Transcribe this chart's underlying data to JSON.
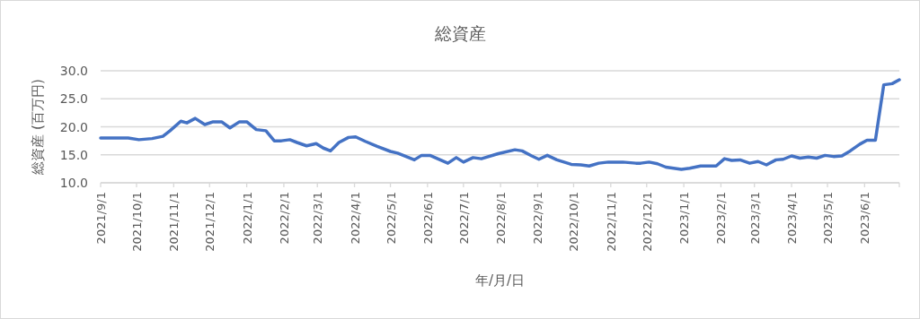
{
  "chart_data": {
    "type": "line",
    "title": "総資産",
    "xlabel": "年/月/日",
    "ylabel": "総資産 (百万円)",
    "x": [
      "2021-09-01",
      "2021-09-24",
      "2021-10-03",
      "2021-10-14",
      "2021-10-23",
      "2021-10-29",
      "2021-11-07",
      "2021-11-12",
      "2021-11-19",
      "2021-11-27",
      "2021-12-04",
      "2021-12-11",
      "2021-12-18",
      "2021-12-26",
      "2022-01-01",
      "2022-01-09",
      "2022-01-17",
      "2022-01-24",
      "2022-01-30",
      "2022-02-06",
      "2022-02-12",
      "2022-02-20",
      "2022-02-28",
      "2022-03-06",
      "2022-03-12",
      "2022-03-19",
      "2022-03-27",
      "2022-04-02",
      "2022-04-10",
      "2022-04-20",
      "2022-05-01",
      "2022-05-07",
      "2022-05-21",
      "2022-05-27",
      "2022-06-03",
      "2022-06-18",
      "2022-06-25",
      "2022-07-01",
      "2022-07-09",
      "2022-07-16",
      "2022-07-30",
      "2022-08-13",
      "2022-08-19",
      "2022-08-27",
      "2022-09-02",
      "2022-09-09",
      "2022-09-17",
      "2022-09-29",
      "2022-10-07",
      "2022-10-14",
      "2022-10-22",
      "2022-10-30",
      "2022-11-11",
      "2022-11-22",
      "2022-11-26",
      "2022-12-03",
      "2022-12-10",
      "2022-12-17",
      "2022-12-30",
      "2023-01-06",
      "2023-01-15",
      "2023-01-28",
      "2023-02-04",
      "2023-02-10",
      "2023-02-17",
      "2023-02-25",
      "2023-03-04",
      "2023-03-11",
      "2023-03-19",
      "2023-03-25",
      "2023-04-01",
      "2023-04-08",
      "2023-04-15",
      "2023-04-22",
      "2023-04-29",
      "2023-05-06",
      "2023-05-13",
      "2023-05-20",
      "2023-05-28",
      "2023-06-03",
      "2023-06-10",
      "2023-06-17",
      "2023-06-24",
      "2023-06-30"
    ],
    "series": [
      {
        "color": "#4472c4",
        "values": [
          18.0,
          18.0,
          17.7,
          17.9,
          18.3,
          19.3,
          21.0,
          20.7,
          21.5,
          20.4,
          20.9,
          20.9,
          19.8,
          20.9,
          20.9,
          19.5,
          19.3,
          17.5,
          17.5,
          17.7,
          17.2,
          16.6,
          17.0,
          16.2,
          15.7,
          17.2,
          18.1,
          18.2,
          17.4,
          16.5,
          15.6,
          15.3,
          14.1,
          14.9,
          14.9,
          13.5,
          14.5,
          13.7,
          14.5,
          14.3,
          15.2,
          15.9,
          15.7,
          14.8,
          14.2,
          14.9,
          14.1,
          13.3,
          13.2,
          13.0,
          13.5,
          13.7,
          13.7,
          13.5,
          13.5,
          13.7,
          13.4,
          12.8,
          12.4,
          12.6,
          13.0,
          13.0,
          14.3,
          14.0,
          14.1,
          13.5,
          13.8,
          13.2,
          14.1,
          14.2,
          14.8,
          14.4,
          14.6,
          14.4,
          14.9,
          14.7,
          14.8,
          15.7,
          16.9,
          17.6,
          17.6,
          27.5,
          27.7,
          28.4
        ]
      }
    ],
    "xlim": [
      "2021-09-01",
      "2023-06-30"
    ],
    "xticks": [
      {
        "value": "2021-09-01",
        "label": "2021/9/1"
      },
      {
        "value": "2021-10-01",
        "label": "2021/10/1"
      },
      {
        "value": "2021-11-01",
        "label": "2021/11/1"
      },
      {
        "value": "2021-12-01",
        "label": "2021/12/1"
      },
      {
        "value": "2022-01-01",
        "label": "2022/1/1"
      },
      {
        "value": "2022-02-01",
        "label": "2022/2/1"
      },
      {
        "value": "2022-03-01",
        "label": "2022/3/1"
      },
      {
        "value": "2022-04-01",
        "label": "2022/4/1"
      },
      {
        "value": "2022-05-01",
        "label": "2022/5/1"
      },
      {
        "value": "2022-06-01",
        "label": "2022/6/1"
      },
      {
        "value": "2022-07-01",
        "label": "2022/7/1"
      },
      {
        "value": "2022-08-01",
        "label": "2022/8/1"
      },
      {
        "value": "2022-09-01",
        "label": "2022/9/1"
      },
      {
        "value": "2022-10-01",
        "label": "2022/10/1"
      },
      {
        "value": "2022-11-01",
        "label": "2022/11/1"
      },
      {
        "value": "2022-12-01",
        "label": "2022/12/1"
      },
      {
        "value": "2023-01-01",
        "label": "2023/1/1"
      },
      {
        "value": "2023-02-01",
        "label": "2023/2/1"
      },
      {
        "value": "2023-03-01",
        "label": "2023/3/1"
      },
      {
        "value": "2023-04-01",
        "label": "2023/4/1"
      },
      {
        "value": "2023-05-01",
        "label": "2023/5/1"
      },
      {
        "value": "2023-06-01",
        "label": "2023/6/1"
      }
    ],
    "ylim": [
      10,
      30
    ],
    "yticks": [
      {
        "value": 10,
        "label": "10.0"
      },
      {
        "value": 15,
        "label": "15.0"
      },
      {
        "value": 20,
        "label": "20.0"
      },
      {
        "value": 25,
        "label": "25.0"
      },
      {
        "value": 30,
        "label": "30.0"
      }
    ],
    "grid": "y",
    "marker": "none",
    "line_style": "solid"
  }
}
